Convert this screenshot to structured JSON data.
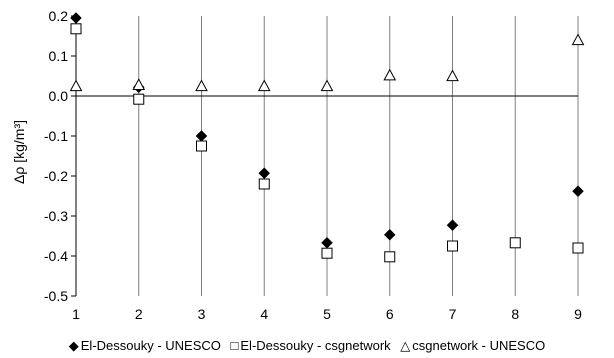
{
  "chart_data": {
    "type": "scatter",
    "title": "",
    "xlabel": "",
    "ylabel": "Δρ [kg/m³]",
    "xlim": [
      1,
      9
    ],
    "ylim": [
      -0.5,
      0.2
    ],
    "x_ticks": [
      "1",
      "2",
      "3",
      "4",
      "5",
      "6",
      "7",
      "8",
      "9"
    ],
    "y_ticks": [
      "0.2",
      "0.1",
      "0.0",
      "-0.1",
      "-0.2",
      "-0.3",
      "-0.4",
      "-0.5"
    ],
    "grid": "vertical",
    "legend_position": "bottom",
    "series": [
      {
        "name": "El-Dessouky - UNESCO",
        "marker": "filled-diamond",
        "color": "#000000",
        "points": [
          {
            "x": 1,
            "y": 0.195
          },
          {
            "x": 2,
            "y": 0.022
          },
          {
            "x": 3,
            "y": -0.1
          },
          {
            "x": 4,
            "y": -0.193
          },
          {
            "x": 5,
            "y": -0.367
          },
          {
            "x": 6,
            "y": -0.347
          },
          {
            "x": 7,
            "y": -0.323
          },
          {
            "x": 9,
            "y": -0.238
          }
        ]
      },
      {
        "name": "El-Dessouky - csgnetwork",
        "marker": "open-square",
        "color": "#000000",
        "points": [
          {
            "x": 1,
            "y": 0.168
          },
          {
            "x": 2,
            "y": -0.008
          },
          {
            "x": 3,
            "y": -0.125
          },
          {
            "x": 4,
            "y": -0.22
          },
          {
            "x": 5,
            "y": -0.393
          },
          {
            "x": 6,
            "y": -0.402
          },
          {
            "x": 7,
            "y": -0.375
          },
          {
            "x": 8,
            "y": -0.367
          },
          {
            "x": 9,
            "y": -0.38
          }
        ]
      },
      {
        "name": "csgnetwork - UNESCO",
        "marker": "open-triangle",
        "color": "#000000",
        "points": [
          {
            "x": 1,
            "y": 0.025
          },
          {
            "x": 2,
            "y": 0.028
          },
          {
            "x": 3,
            "y": 0.025
          },
          {
            "x": 4,
            "y": 0.025
          },
          {
            "x": 5,
            "y": 0.025
          },
          {
            "x": 6,
            "y": 0.052
          },
          {
            "x": 7,
            "y": 0.05
          },
          {
            "x": 9,
            "y": 0.14
          }
        ]
      }
    ]
  },
  "legend": {
    "items": [
      {
        "symbol": "◆",
        "label": "El-Dessouky - UNESCO"
      },
      {
        "symbol": "□",
        "label": "El-Dessouky - csgnetwork"
      },
      {
        "symbol": "△",
        "label": "csgnetwork - UNESCO"
      }
    ]
  }
}
